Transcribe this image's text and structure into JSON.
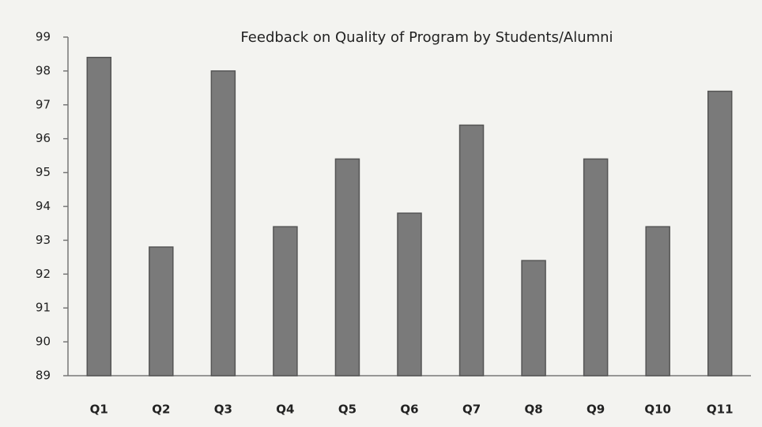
{
  "chart_data": {
    "type": "bar",
    "title": "Feedback on Quality of Program by Students/Alumni",
    "categories": [
      "Q1",
      "Q2",
      "Q3",
      "Q4",
      "Q5",
      "Q6",
      "Q7",
      "Q8",
      "Q9",
      "Q10",
      "Q11"
    ],
    "values": [
      98.4,
      92.8,
      98.0,
      93.4,
      95.4,
      93.8,
      96.4,
      92.4,
      95.4,
      93.4,
      97.4
    ],
    "color": "#7a7a7a",
    "ylim": [
      89,
      99
    ],
    "yticks": [
      89,
      90,
      91,
      92,
      93,
      94,
      95,
      96,
      97,
      98,
      99
    ],
    "grid": false
  }
}
